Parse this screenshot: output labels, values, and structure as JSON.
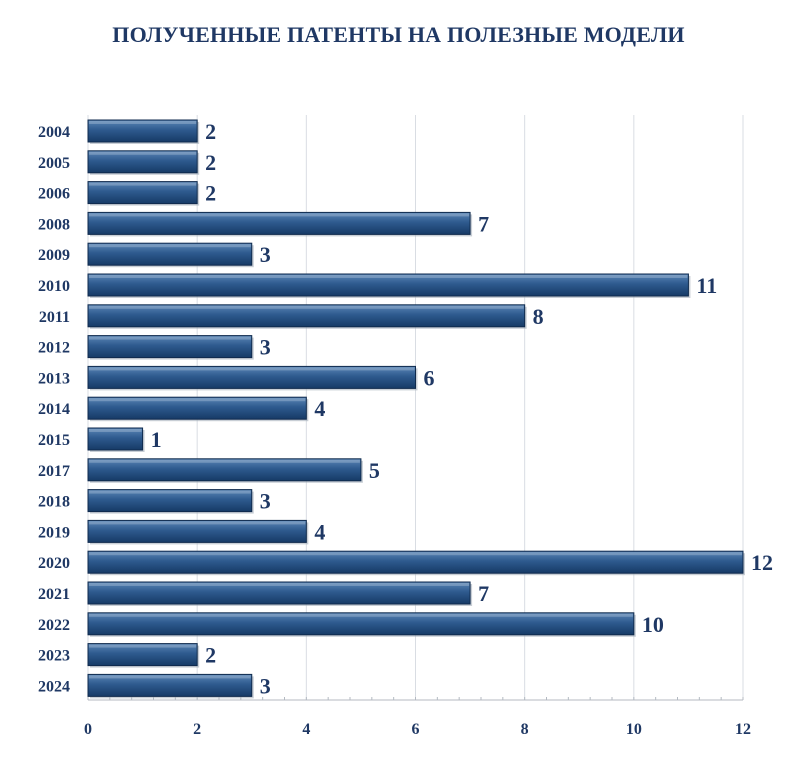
{
  "chart_data": {
    "type": "bar",
    "orientation": "horizontal",
    "title": "ПОЛУЧЕННЫЕ ПАТЕНТЫ НА ПОЛЕЗНЫЕ МОДЕЛИ",
    "categories": [
      "2004",
      "2005",
      "2006",
      "2008",
      "2009",
      "2010",
      "2011",
      "2012",
      "2013",
      "2014",
      "2015",
      "2017",
      "2018",
      "2019",
      "2020",
      "2021",
      "2022",
      "2023",
      "2024"
    ],
    "values": [
      2,
      2,
      2,
      7,
      3,
      11,
      8,
      3,
      6,
      4,
      1,
      5,
      3,
      4,
      12,
      7,
      10,
      2,
      3
    ],
    "xlim": [
      0,
      12
    ],
    "xticks": [
      0,
      2,
      4,
      6,
      8,
      10,
      12
    ],
    "xlabel": "",
    "ylabel": "",
    "grid": true,
    "legend": "none",
    "data_labels": true,
    "colors": {
      "bar_light": "#5b86b6",
      "bar_mid": "#2e5a8e",
      "bar_dark": "#163a66",
      "text": "#1f3864",
      "grid": "#d9dde3",
      "axis": "#b4bac2"
    }
  }
}
